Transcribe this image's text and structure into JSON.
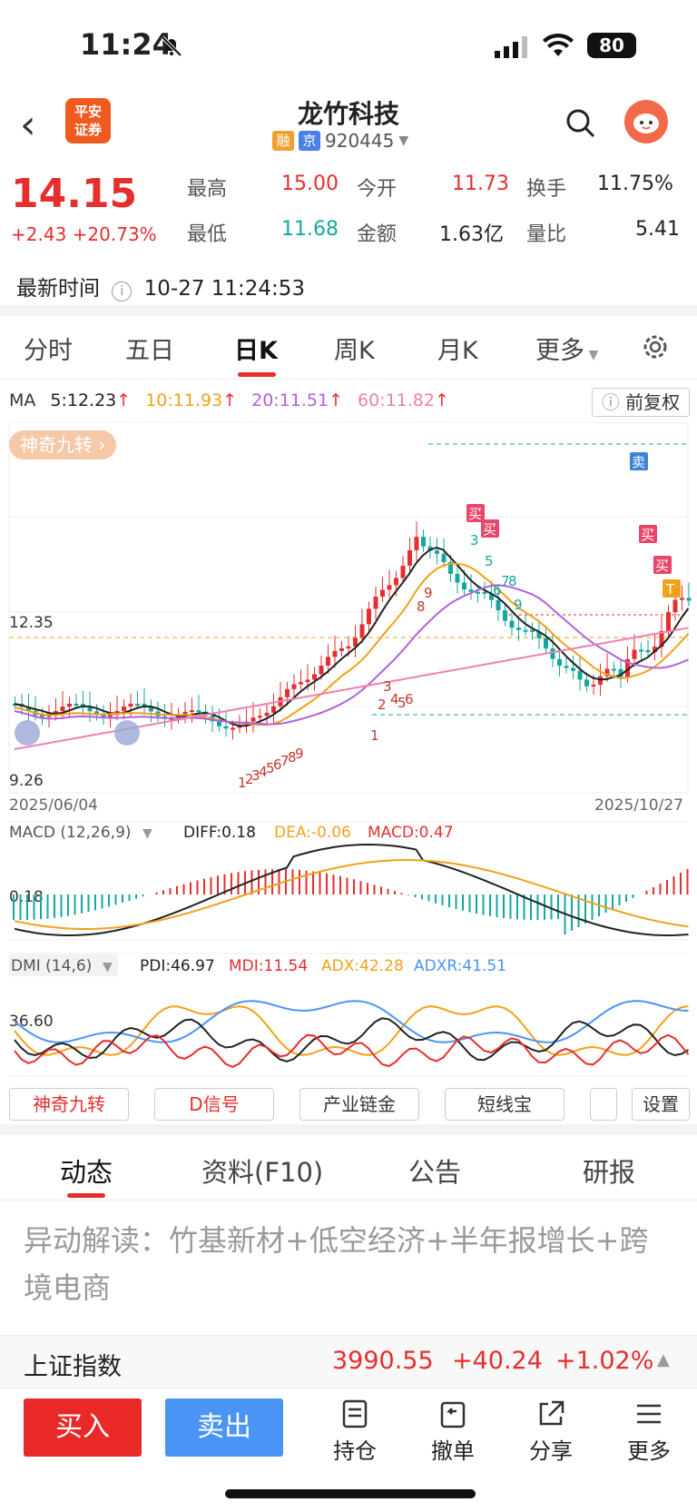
{
  "status": {
    "time": "11:24",
    "battery": "80"
  },
  "header": {
    "title": "龙竹科技",
    "code": "920445",
    "tag_rong": "融",
    "tag_jing": "京",
    "broker": "平安证券"
  },
  "quote": {
    "price": "14.15",
    "change": "+2.43",
    "pct": "+20.73%",
    "high_label": "最高",
    "high": "15.00",
    "open_label": "今开",
    "open": "11.73",
    "turnover_label": "换手",
    "turnover": "11.75%",
    "low_label": "最低",
    "low": "11.68",
    "amount_label": "金额",
    "amount": "1.63亿",
    "ratio_label": "量比",
    "ratio": "5.41",
    "time_label": "最新时间",
    "time_value": "10-27 11:24:53"
  },
  "tabs": [
    "分时",
    "五日",
    "日K",
    "周K",
    "月K",
    "更多"
  ],
  "ma": {
    "label": "MA",
    "ma5": "5:12.23",
    "ma10": "10:11.93",
    "ma20": "20:11.51",
    "ma60": "60:11.82",
    "adjust": "前复权"
  },
  "magic_label": "神奇九转",
  "chart_data": {
    "type": "candlestick",
    "y_labels": [
      "12.35",
      "9.26"
    ],
    "date_start": "2025/06/04",
    "date_end": "2025/10/27",
    "signals": [
      "买",
      "买",
      "卖",
      "买",
      "买",
      "T"
    ],
    "nine_seq_up": [
      "1",
      "2",
      "3",
      "4",
      "5",
      "6",
      "7",
      "8",
      "9"
    ],
    "macd": {
      "label": "MACD (12,26,9)",
      "diff": "DIFF:0.18",
      "dea": "DEA:-0.06",
      "macd": "MACD:0.47",
      "axis_label": "0.18"
    },
    "dmi": {
      "label": "DMI (14,6)",
      "pdi": "PDI:46.97",
      "mdi": "MDI:11.54",
      "adx": "ADX:42.28",
      "adxr": "ADXR:41.51",
      "axis_label": "36.60"
    },
    "colors": {
      "up": "#e62e2e",
      "down": "#13a89e",
      "ma5": "#222222",
      "ma10": "#f2a11b",
      "ma20": "#b061e0",
      "ma60": "#f07fb0"
    }
  },
  "func_buttons": [
    "神奇九转",
    "D信号",
    "产业链金",
    "短线宝",
    "设置"
  ],
  "info_tabs": [
    "动态",
    "资料(F10)",
    "公告",
    "研报"
  ],
  "news": "异动解读：竹基新材+低空经济+半年报增长+跨境电商",
  "index": {
    "name": "上证指数",
    "value": "3990.55",
    "change": "+40.24",
    "pct": "+1.02%"
  },
  "bottom": {
    "buy": "买入",
    "sell": "卖出",
    "hold": "持仓",
    "cancel": "撤单",
    "share": "分享",
    "more": "更多"
  }
}
